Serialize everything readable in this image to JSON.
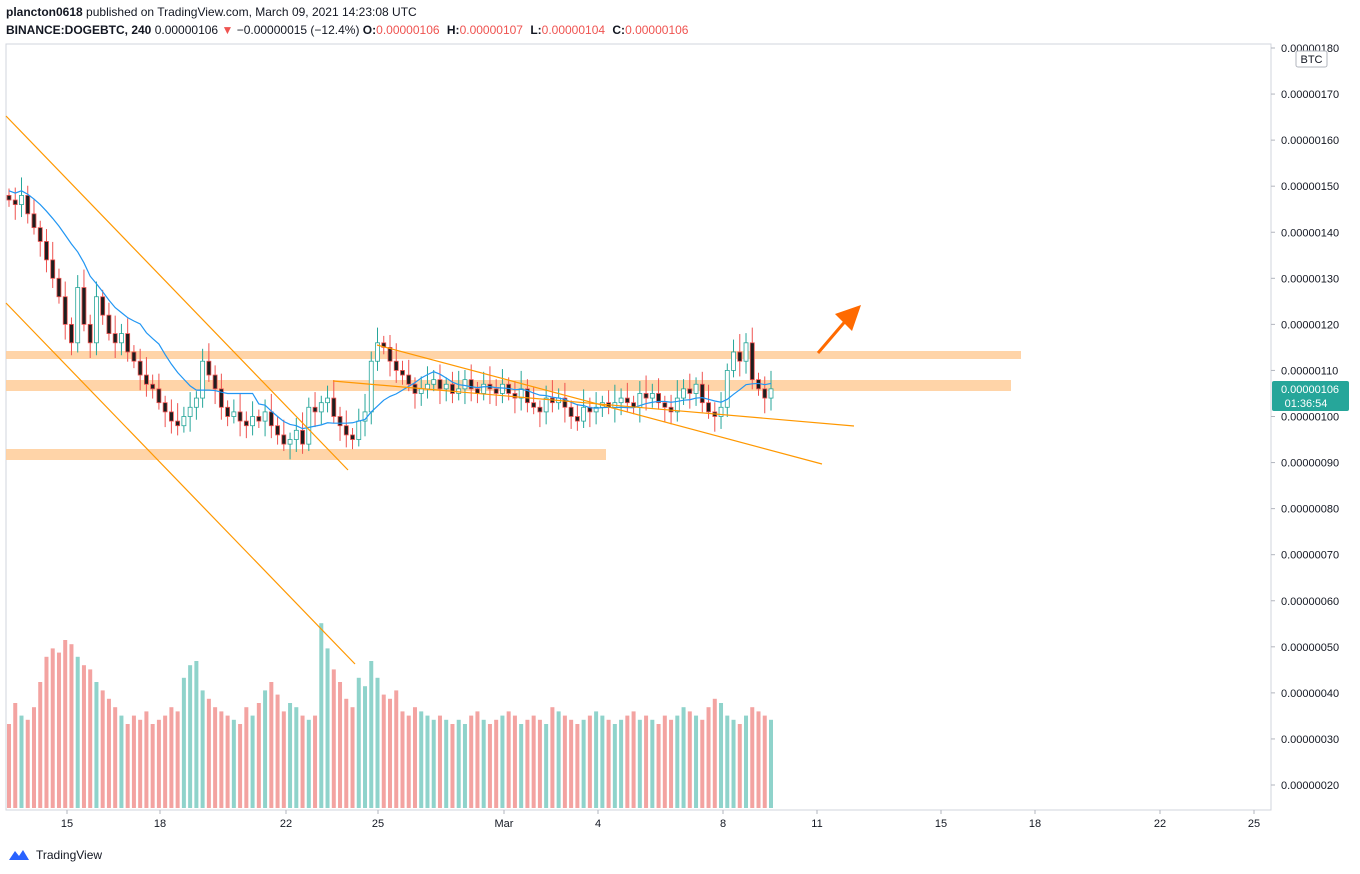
{
  "header": {
    "user": "plancton0618",
    "published": "published on TradingView.com, March 09, 2021 14:23:08 UTC",
    "symbol": "BINANCE:DOGEBTC, 240",
    "last": "0.00000106",
    "arrow": "▼",
    "change": "−0.00000015 (−12.4%)",
    "o_label": "O:",
    "o_val": "0.00000106",
    "h_label": "H:",
    "h_val": "0.00000107",
    "l_label": "L:",
    "l_val": "0.00000104",
    "c_label": "C:",
    "c_val": "0.00000106"
  },
  "footer": {
    "brand": "TradingView",
    "logo_icon": "tradingview-logo-icon"
  },
  "colors": {
    "up": "#26a69a",
    "down": "#ef5350",
    "candle_body": "#1e1e1e",
    "ma": "#2196f3",
    "trendline": "#ff9800",
    "zone": "#ffcc99",
    "arrow": "#ff6a00",
    "price_tag": "#26a69a"
  },
  "chart_data": {
    "type": "candlestick",
    "currency_badge": "BTC",
    "y_ticks": [
      "0.00000180",
      "0.00000170",
      "0.00000160",
      "0.00000150",
      "0.00000140",
      "0.00000130",
      "0.00000120",
      "0.00000110",
      "0.00000100",
      "0.00000090",
      "0.00000080",
      "0.00000070",
      "0.00000060",
      "0.00000050",
      "0.00000040",
      "0.00000030",
      "0.00000020"
    ],
    "x_ticks": [
      "15",
      "18",
      "22",
      "25",
      "Mar",
      "4",
      "8",
      "11",
      "15",
      "18",
      "22",
      "25"
    ],
    "ylim": [
      1.7e-07,
      1.83e-06
    ],
    "current_price_label": "0.00000106",
    "countdown_label": "01:36:54",
    "closes": [
      147,
      146,
      148,
      144,
      141,
      138,
      134,
      130,
      126,
      120,
      116,
      128,
      120,
      116,
      126,
      122,
      118,
      116,
      118,
      114,
      112,
      109,
      107,
      106,
      103,
      101,
      99,
      98,
      100,
      102,
      104,
      112,
      109,
      106,
      102,
      100,
      101,
      99,
      98,
      100,
      99,
      101,
      98,
      96,
      94,
      95,
      97,
      94,
      102,
      101,
      103,
      104,
      100,
      98,
      96,
      95,
      99,
      101,
      112,
      116,
      115,
      112,
      110,
      109,
      107,
      105,
      106,
      107,
      108,
      106,
      107,
      105,
      106,
      108,
      106,
      105,
      107,
      106,
      105,
      107,
      105,
      104,
      106,
      103,
      102,
      101,
      104,
      103,
      104,
      102,
      100,
      99,
      102,
      101,
      102,
      103,
      102,
      103,
      104,
      103,
      102,
      105,
      104,
      105,
      103,
      102,
      101,
      104,
      106,
      105,
      107,
      103,
      101,
      100,
      102,
      110,
      114,
      112,
      116,
      108,
      106,
      104,
      106
    ],
    "volume": [
      20,
      25,
      22,
      21,
      24,
      30,
      36,
      38,
      37,
      40,
      39,
      36,
      34,
      33,
      30,
      28,
      26,
      24,
      22,
      20,
      22,
      21,
      23,
      20,
      21,
      22,
      24,
      23,
      31,
      34,
      35,
      28,
      26,
      24,
      23,
      22,
      21,
      20,
      24,
      22,
      25,
      28,
      30,
      27,
      23,
      25,
      24,
      22,
      21,
      22,
      44,
      38,
      33,
      30,
      26,
      24,
      31,
      29,
      35,
      31,
      27,
      26,
      28,
      23,
      22,
      24,
      23,
      22,
      21,
      22,
      21,
      20,
      21,
      20,
      22,
      23,
      21,
      20,
      21,
      22,
      23,
      22,
      20,
      21,
      22,
      21,
      20,
      24,
      23,
      22,
      21,
      20,
      21,
      22,
      23,
      22,
      21,
      20,
      21,
      22,
      23,
      21,
      22,
      21,
      20,
      22,
      21,
      22,
      24,
      23,
      22,
      21,
      24,
      26,
      25,
      22,
      21,
      20,
      22,
      24,
      23,
      22,
      21
    ],
    "ma": "20-period moving average (blue)",
    "annotations": "orange descending trendlines, horizontal support/resistance zones, orange up arrow"
  }
}
